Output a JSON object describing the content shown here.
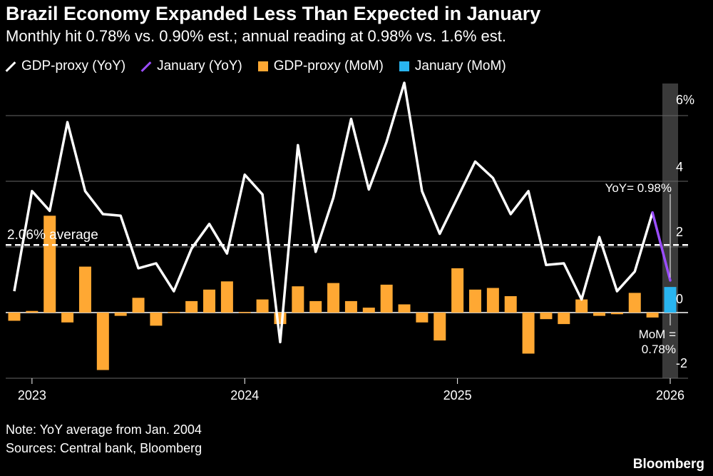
{
  "header": {
    "title": "Brazil Economy Expanded Less Than Expected in January",
    "subtitle": "Monthly hit 0.78% vs. 0.90% est.; annual reading at 0.98% vs. 1.6% est."
  },
  "legend": [
    {
      "label": "GDP-proxy (YoY)",
      "color": "#ffffff",
      "kind": "line"
    },
    {
      "label": "January (YoY)",
      "color": "#9b4dff",
      "kind": "line"
    },
    {
      "label": "GDP-proxy (MoM)",
      "color": "#ffa833",
      "kind": "box"
    },
    {
      "label": "January (MoM)",
      "color": "#29b5f0",
      "kind": "box"
    }
  ],
  "footer": {
    "note": "Note: YoY average from Jan. 2004",
    "sources": "Sources: Central bank, Bloomberg",
    "brand": "Bloomberg"
  },
  "chart_data": {
    "type": "bar+line",
    "x_ticks": [
      "2023",
      "2024",
      "2025",
      "2026"
    ],
    "y_ticks": [
      "6%",
      "4",
      "2",
      "0",
      "-2"
    ],
    "ylim": [
      -2,
      7
    ],
    "grid": true,
    "months": [
      "2022-12",
      "2023-01",
      "2023-02",
      "2023-03",
      "2023-04",
      "2023-05",
      "2023-06",
      "2023-07",
      "2023-08",
      "2023-09",
      "2023-10",
      "2023-11",
      "2023-12",
      "2024-01",
      "2024-02",
      "2024-03",
      "2024-04",
      "2024-05",
      "2024-06",
      "2024-07",
      "2024-08",
      "2024-09",
      "2024-10",
      "2024-11",
      "2024-12",
      "2025-01",
      "2025-02",
      "2025-03",
      "2025-04",
      "2025-05",
      "2025-06",
      "2025-07",
      "2025-08",
      "2025-09",
      "2025-10",
      "2025-11",
      "2025-12",
      "2026-01"
    ],
    "yoy": [
      0.65,
      3.7,
      3.1,
      5.8,
      3.7,
      3.0,
      2.95,
      1.35,
      1.5,
      0.65,
      1.95,
      2.7,
      1.8,
      4.2,
      3.6,
      -0.9,
      5.1,
      1.85,
      3.5,
      5.9,
      3.75,
      5.2,
      7.0,
      3.7,
      2.4,
      3.5,
      4.6,
      4.1,
      3.0,
      3.7,
      1.45,
      1.5,
      0.4,
      2.3,
      0.65,
      1.25,
      3.05,
      0.98
    ],
    "mom": [
      -0.25,
      0.05,
      2.95,
      -0.3,
      1.4,
      -1.75,
      -0.1,
      0.45,
      -0.4,
      0.02,
      0.35,
      0.7,
      0.95,
      0.02,
      0.4,
      -0.35,
      0.8,
      0.35,
      0.9,
      0.35,
      0.15,
      0.85,
      0.25,
      -0.3,
      -0.85,
      1.35,
      0.7,
      0.75,
      0.5,
      -1.25,
      -0.2,
      -0.35,
      0.4,
      -0.1,
      -0.05,
      0.6,
      -0.15,
      0.78
    ],
    "average": {
      "value": 2.06,
      "label": "2.06% average"
    },
    "annotations": {
      "yoy_label": "YoY= 0.98%",
      "mom_label_line1": "MoM =",
      "mom_label_line2": "0.78%"
    }
  }
}
